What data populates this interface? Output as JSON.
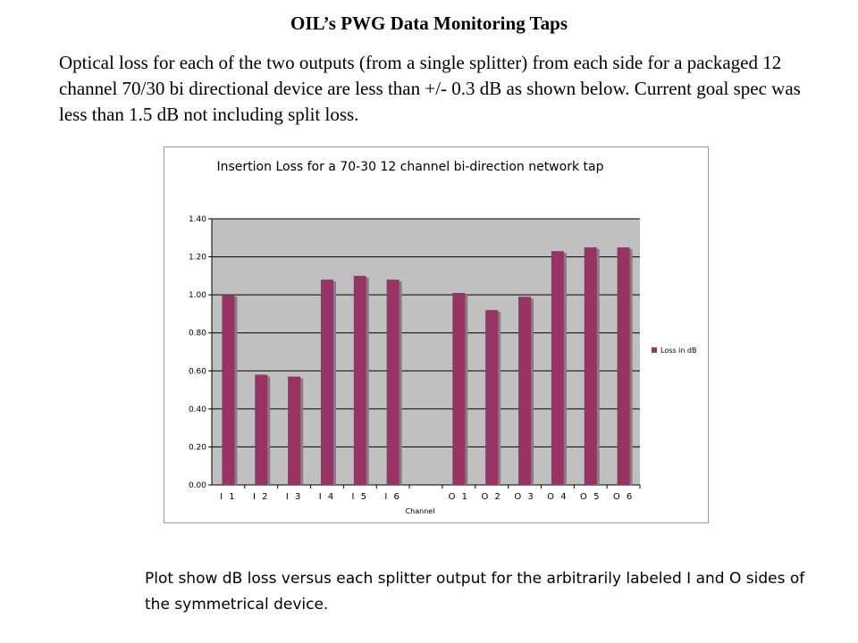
{
  "slide": {
    "title": "OIL’s PWG Data Monitoring Taps",
    "body": "Optical loss for each of the two outputs (from a single splitter) from each side for a packaged 12 channel 70/30 bi directional device are less than +/- 0.3 dB as shown below. Current goal spec was less than 1.5 dB not including split loss.",
    "caption": "Plot show dB loss versus each splitter output for the arbitrarily labeled I and O sides of the symmetrical device."
  },
  "colors": {
    "bar": "#993366",
    "plot_background": "#c0c0c0",
    "gridline": "#000000"
  },
  "chart_data": {
    "type": "bar",
    "title": "Insertion Loss for a 70-30 12 channel bi-direction network tap",
    "xlabel": "Channel",
    "ylabel": "",
    "categories": [
      "I 1",
      "I 2",
      "I 3",
      "I 4",
      "I 5",
      "I 6",
      "",
      "O 1",
      "O 2",
      "O 3",
      "O 4",
      "O 5",
      "O 6"
    ],
    "series": [
      {
        "name": "Loss in dB",
        "values": [
          1.0,
          0.58,
          0.57,
          1.08,
          1.1,
          1.08,
          null,
          1.01,
          0.92,
          0.99,
          1.23,
          1.25,
          1.25
        ]
      }
    ],
    "y_ticks": [
      "0.00",
      "0.20",
      "0.40",
      "0.60",
      "0.80",
      "1.00",
      "1.20",
      "1.40"
    ],
    "ylim": [
      0,
      1.4
    ],
    "grid": true,
    "legend_position": "right"
  }
}
